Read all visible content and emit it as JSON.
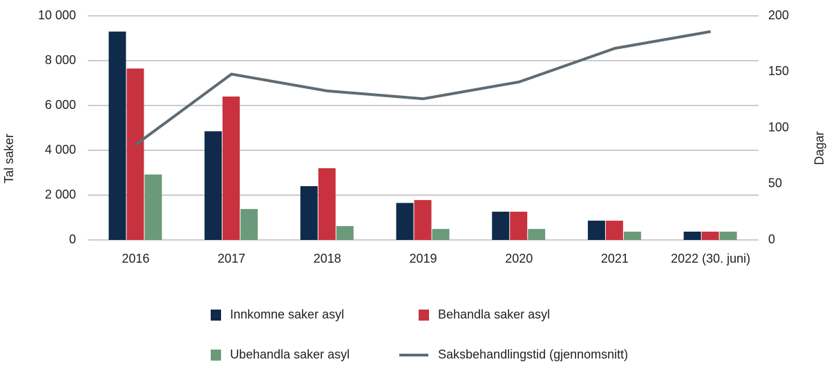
{
  "chart_data": {
    "type": "bar",
    "categories": [
      "2016",
      "2017",
      "2018",
      "2019",
      "2020",
      "2021",
      "2022 (30. juni)"
    ],
    "y_label": "Tal saker",
    "y2_label": "Dagar",
    "ylim": [
      0,
      10000
    ],
    "yticks": [
      0,
      {
        "value": 2000,
        "label": "2 000"
      },
      {
        "value": 4000,
        "label": "4 000"
      },
      {
        "value": 6000,
        "label": "6 000"
      },
      {
        "value": 8000,
        "label": "8 000"
      },
      {
        "value": 10000,
        "label": "10 000"
      }
    ],
    "y2lim": [
      0,
      200
    ],
    "y2ticks": [
      0,
      50,
      100,
      150,
      200
    ],
    "grid": true,
    "legend": "bottom",
    "series": [
      {
        "name": "Innkomne saker asyl",
        "color": "#0f2a4a",
        "type": "bar",
        "values": [
          9300,
          4850,
          2400,
          1650,
          1260,
          860,
          370
        ]
      },
      {
        "name": "Behandla saker asyl",
        "color": "#c8323f",
        "type": "bar",
        "values": [
          7650,
          6400,
          3200,
          1780,
          1260,
          860,
          370
        ]
      },
      {
        "name": "Ubehandla saker asyl",
        "color": "#6b9a7a",
        "type": "bar",
        "values": [
          2920,
          1380,
          620,
          490,
          490,
          370,
          370
        ]
      },
      {
        "name": "Saksbehandlingstid (gjennomsnitt)",
        "color": "#5f6b73",
        "type": "line",
        "axis": "y2",
        "values": [
          85,
          148,
          133,
          126,
          141,
          171,
          186
        ]
      }
    ]
  }
}
